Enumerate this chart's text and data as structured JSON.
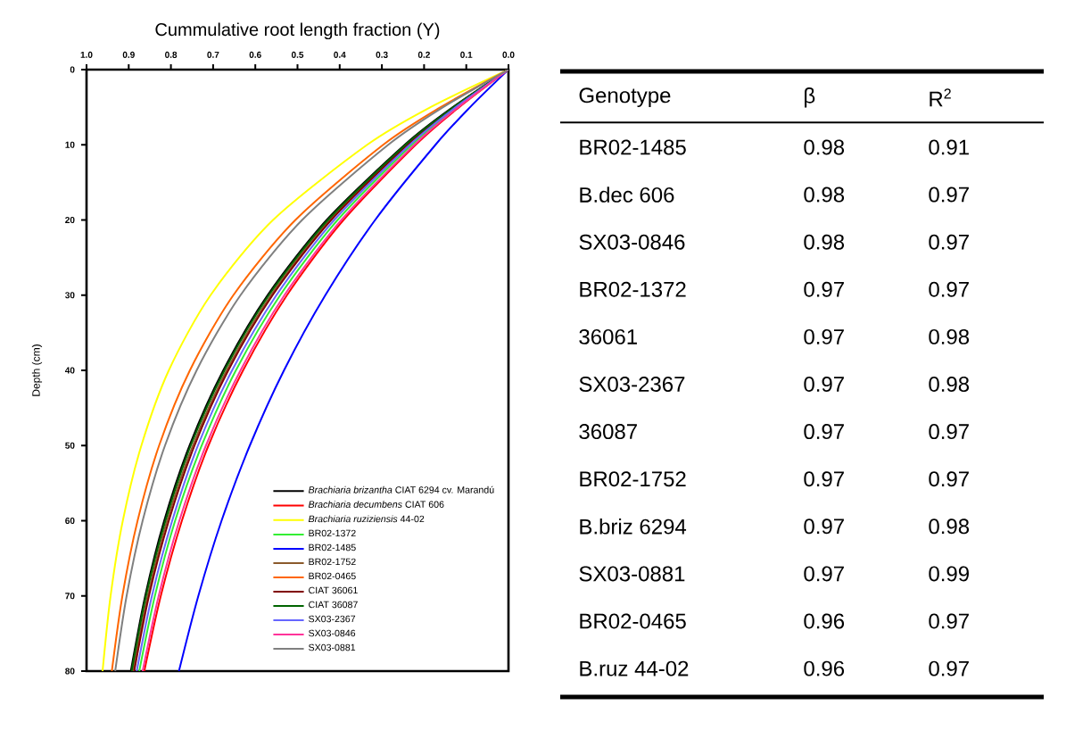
{
  "chart_data": [
    {
      "type": "line",
      "xlabel": "Cummulative root length fraction (Y)",
      "ylabel": "Depth (cm)",
      "xlim": [
        1.0,
        0.0
      ],
      "ylim": [
        80,
        0
      ],
      "xticks": [
        {
          "value": 1.0,
          "label": "1.0"
        },
        {
          "value": 0.9,
          "label": "0.9"
        },
        {
          "value": 0.8,
          "label": "0.8"
        },
        {
          "value": 0.7,
          "label": "0.7"
        },
        {
          "value": 0.6,
          "label": "0.6"
        },
        {
          "value": 0.5,
          "label": "0.5"
        },
        {
          "value": 0.4,
          "label": "0.4"
        },
        {
          "value": 0.3,
          "label": "0.3"
        },
        {
          "value": 0.2,
          "label": "0.2"
        },
        {
          "value": 0.1,
          "label": "0.1"
        },
        {
          "value": 0.0,
          "label": "0.0"
        }
      ],
      "yticks": [
        0,
        10,
        20,
        30,
        40,
        50,
        60,
        70,
        80
      ],
      "legend": "bottom right",
      "series": [
        {
          "name": "*Brachiaria brizantha* CIAT 6294 cv. Marandú",
          "color": "#000000",
          "x": [
            0,
            0.132,
            0.246,
            0.431,
            0.571,
            0.676,
            0.756,
            0.816,
            0.861,
            0.895
          ],
          "values": [
            0,
            5,
            10,
            20,
            30,
            40,
            50,
            60,
            70,
            80
          ]
        },
        {
          "name": "*Brachiaria decumbens* CIAT 606",
          "color": "#ff0000",
          "x": [
            0,
            0.117,
            0.22,
            0.391,
            0.525,
            0.629,
            0.711,
            0.774,
            0.824,
            0.863
          ],
          "values": [
            0,
            5,
            10,
            20,
            30,
            40,
            50,
            60,
            70,
            80
          ]
        },
        {
          "name": "*Brachiaria ruziziensis* 44-02",
          "color": "#ffff00",
          "x": [
            0,
            0.185,
            0.335,
            0.558,
            0.706,
            0.805,
            0.87,
            0.914,
            0.943,
            0.962
          ],
          "values": [
            0,
            5,
            10,
            20,
            30,
            40,
            50,
            60,
            70,
            80
          ]
        },
        {
          "name": "BR02-1372",
          "color": "#33ee33",
          "x": [
            0,
            0.122,
            0.229,
            0.405,
            0.541,
            0.646,
            0.727,
            0.79,
            0.838,
            0.875
          ],
          "values": [
            0,
            5,
            10,
            20,
            30,
            40,
            50,
            60,
            70,
            80
          ]
        },
        {
          "name": "BR02-1485",
          "color": "#0000ff",
          "x": [
            0,
            0.091,
            0.173,
            0.316,
            0.434,
            0.532,
            0.613,
            0.68,
            0.735,
            0.781
          ],
          "values": [
            0,
            5,
            10,
            20,
            30,
            40,
            50,
            60,
            70,
            80
          ]
        },
        {
          "name": "BR02-1752",
          "color": "#8b5a2b",
          "x": [
            0,
            0.129,
            0.241,
            0.424,
            0.563,
            0.668,
            0.748,
            0.809,
            0.855,
            0.89
          ],
          "values": [
            0,
            5,
            10,
            20,
            30,
            40,
            50,
            60,
            70,
            80
          ]
        },
        {
          "name": "BR02-0465",
          "color": "#ff6600",
          "x": [
            0,
            0.161,
            0.297,
            0.505,
            0.652,
            0.755,
            0.828,
            0.879,
            0.915,
            0.94
          ],
          "values": [
            0,
            5,
            10,
            20,
            30,
            40,
            50,
            60,
            70,
            80
          ]
        },
        {
          "name": "CIAT 36061",
          "color": "#800000",
          "x": [
            0,
            0.127,
            0.239,
            0.42,
            0.559,
            0.664,
            0.744,
            0.805,
            0.852,
            0.887
          ],
          "values": [
            0,
            5,
            10,
            20,
            30,
            40,
            50,
            60,
            70,
            80
          ]
        },
        {
          "name": "CIAT 36087",
          "color": "#006400",
          "x": [
            0,
            0.13,
            0.244,
            0.428,
            0.568,
            0.673,
            0.753,
            0.813,
            0.859,
            0.893
          ],
          "values": [
            0,
            5,
            10,
            20,
            30,
            40,
            50,
            60,
            70,
            80
          ]
        },
        {
          "name": "SX03-2367",
          "color": "#6666ff",
          "x": [
            0,
            0.125,
            0.234,
            0.413,
            0.55,
            0.655,
            0.736,
            0.797,
            0.845,
            0.881
          ],
          "values": [
            0,
            5,
            10,
            20,
            30,
            40,
            50,
            60,
            70,
            80
          ]
        },
        {
          "name": "SX03-0846",
          "color": "#ff3399",
          "x": [
            0,
            0.119,
            0.223,
            0.396,
            0.531,
            0.635,
            0.717,
            0.78,
            0.829,
            0.867
          ],
          "values": [
            0,
            5,
            10,
            20,
            30,
            40,
            50,
            60,
            70,
            80
          ]
        },
        {
          "name": "SX03-0881",
          "color": "#808080",
          "x": [
            0,
            0.155,
            0.285,
            0.489,
            0.635,
            0.739,
            0.814,
            0.867,
            0.905,
            0.932
          ],
          "values": [
            0,
            5,
            10,
            20,
            30,
            40,
            50,
            60,
            70,
            80
          ]
        }
      ]
    },
    {
      "type": "other",
      "xlabel": "Genotype",
      "data_labels": true,
      "categories": [
        "BR02-1485",
        "B.dec 606",
        "SX03-0846",
        "BR02-1372",
        "36061",
        "SX03-2367",
        "36087",
        "BR02-1752",
        "B.briz 6294",
        "SX03-0881",
        "BR02-0465",
        "B.ruz 44-02"
      ],
      "series": [
        {
          "name": "β",
          "values": [
            0.98,
            0.98,
            0.98,
            0.97,
            0.97,
            0.97,
            0.97,
            0.97,
            0.97,
            0.97,
            0.96,
            0.96
          ]
        },
        {
          "name": "R$^{2}$",
          "values": [
            0.91,
            0.97,
            0.97,
            0.97,
            0.98,
            0.98,
            0.97,
            0.97,
            0.98,
            0.99,
            0.97,
            0.97
          ]
        }
      ]
    }
  ]
}
